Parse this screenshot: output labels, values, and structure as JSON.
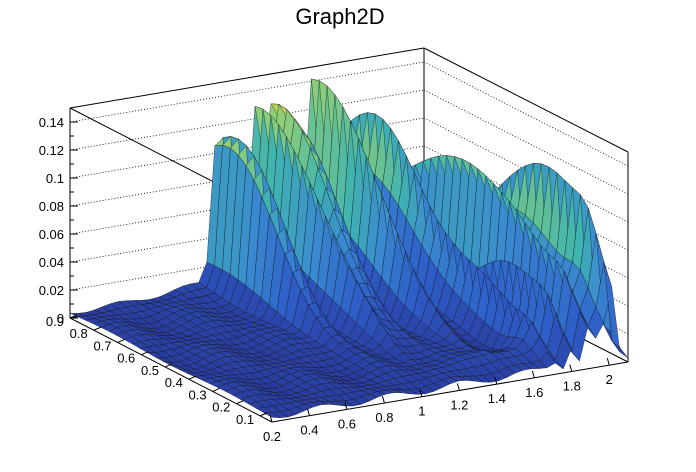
{
  "chart_data": {
    "type": "surface",
    "title": "Graph2D",
    "x_axis": {
      "range": [
        0.2,
        2.1
      ],
      "ticks": [
        "0.2",
        "0.4",
        "0.6",
        "0.8",
        "1",
        "1.2",
        "1.4",
        "1.6",
        "1.8",
        "2"
      ]
    },
    "y_axis": {
      "range": [
        0.05,
        0.9
      ],
      "ticks": [
        "0.1",
        "0.2",
        "0.3",
        "0.4",
        "0.5",
        "0.6",
        "0.7",
        "0.8",
        "0.9"
      ]
    },
    "z_axis": {
      "range": [
        0,
        0.15
      ],
      "ticks": [
        "0",
        "0.02",
        "0.04",
        "0.06",
        "0.08",
        "0.1",
        "0.12",
        "0.14"
      ]
    },
    "grid": true,
    "colormap": "viridis-like (dark blue to yellow)",
    "colormap_colors": [
      "#2a3a9e",
      "#2e5fc9",
      "#3a8ad0",
      "#3fb3b0",
      "#8ecf78",
      "#f5d23a"
    ],
    "peaks": [
      {
        "x": 1.0,
        "y": 0.85,
        "z": 0.13
      },
      {
        "x": 1.2,
        "y": 0.85,
        "z": 0.12
      },
      {
        "x": 1.3,
        "y": 0.85,
        "z": 0.14
      },
      {
        "x": 1.5,
        "y": 0.85,
        "z": 0.13
      },
      {
        "x": 1.7,
        "y": 0.8,
        "z": 0.11
      },
      {
        "x": 1.9,
        "y": 0.6,
        "z": 0.1
      },
      {
        "x": 2.0,
        "y": 0.4,
        "z": 0.09
      }
    ]
  }
}
